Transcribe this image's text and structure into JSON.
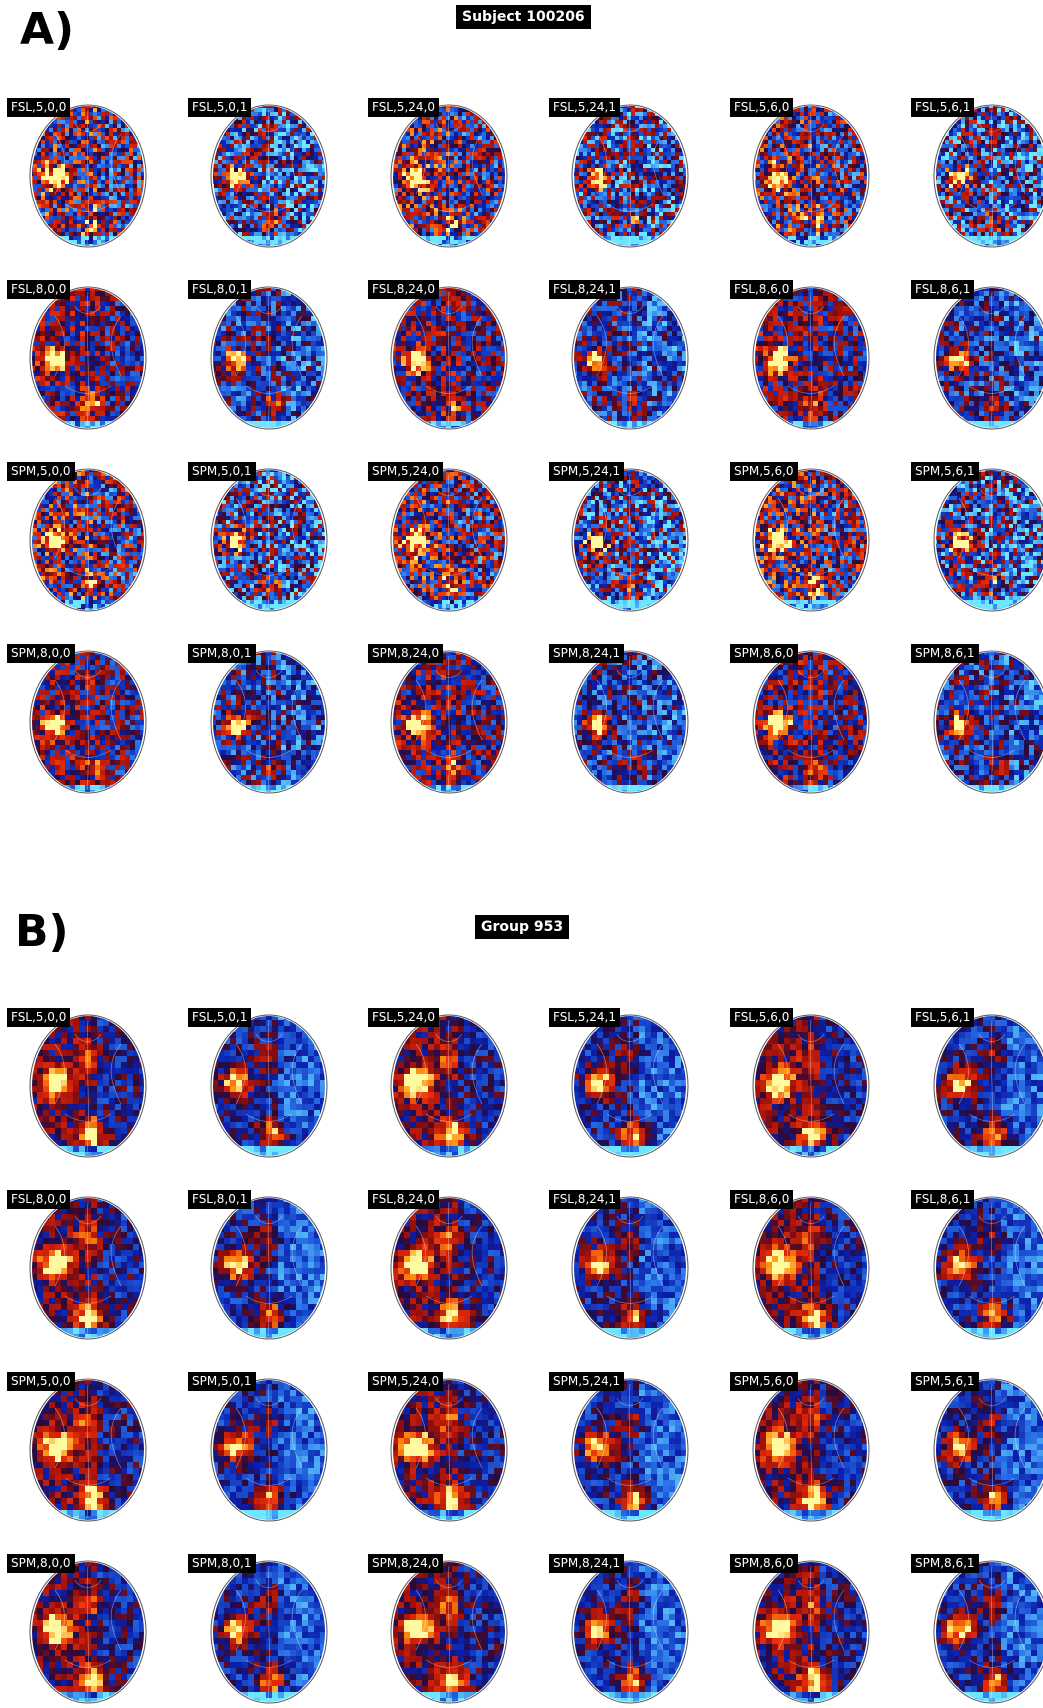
{
  "panels": [
    {
      "id": "A",
      "letter": "A)",
      "title": "Subject 100206",
      "style": "subject",
      "rows": [
        [
          "FSL,5,0,0",
          "FSL,5,0,1",
          "FSL,5,24,0",
          "FSL,5,24,1",
          "FSL,5,6,0",
          "FSL,5,6,1"
        ],
        [
          "FSL,8,0,0",
          "FSL,8,0,1",
          "FSL,8,24,0",
          "FSL,8,24,1",
          "FSL,8,6,0",
          "FSL,8,6,1"
        ],
        [
          "SPM,5,0,0",
          "SPM,5,0,1",
          "SPM,5,24,0",
          "SPM,5,24,1",
          "SPM,5,6,0",
          "SPM,5,6,1"
        ],
        [
          "SPM,8,0,0",
          "SPM,8,0,1",
          "SPM,8,24,0",
          "SPM,8,24,1",
          "SPM,8,6,0",
          "SPM,8,6,1"
        ]
      ]
    },
    {
      "id": "B",
      "letter": "B)",
      "title": "Group 953",
      "style": "group",
      "rows": [
        [
          "FSL,5,0,0",
          "FSL,5,0,1",
          "FSL,5,24,0",
          "FSL,5,24,1",
          "FSL,5,6,0",
          "FSL,5,6,1"
        ],
        [
          "FSL,8,0,0",
          "FSL,8,0,1",
          "FSL,8,24,0",
          "FSL,8,24,1",
          "FSL,8,6,0",
          "FSL,8,6,1"
        ],
        [
          "SPM,5,0,0",
          "SPM,5,0,1",
          "SPM,5,24,0",
          "SPM,5,24,1",
          "SPM,5,6,0",
          "SPM,5,6,1"
        ],
        [
          "SPM,8,0,0",
          "SPM,8,0,1",
          "SPM,8,24,0",
          "SPM,8,24,1",
          "SPM,8,6,0",
          "SPM,8,6,1"
        ]
      ]
    }
  ],
  "colors": {
    "label_bg": "#000000",
    "label_fg": "#ffffff",
    "negative": "#1030c0",
    "positive": "#c01a0a",
    "hot": "#ffee55",
    "cold": "#66ddff"
  }
}
